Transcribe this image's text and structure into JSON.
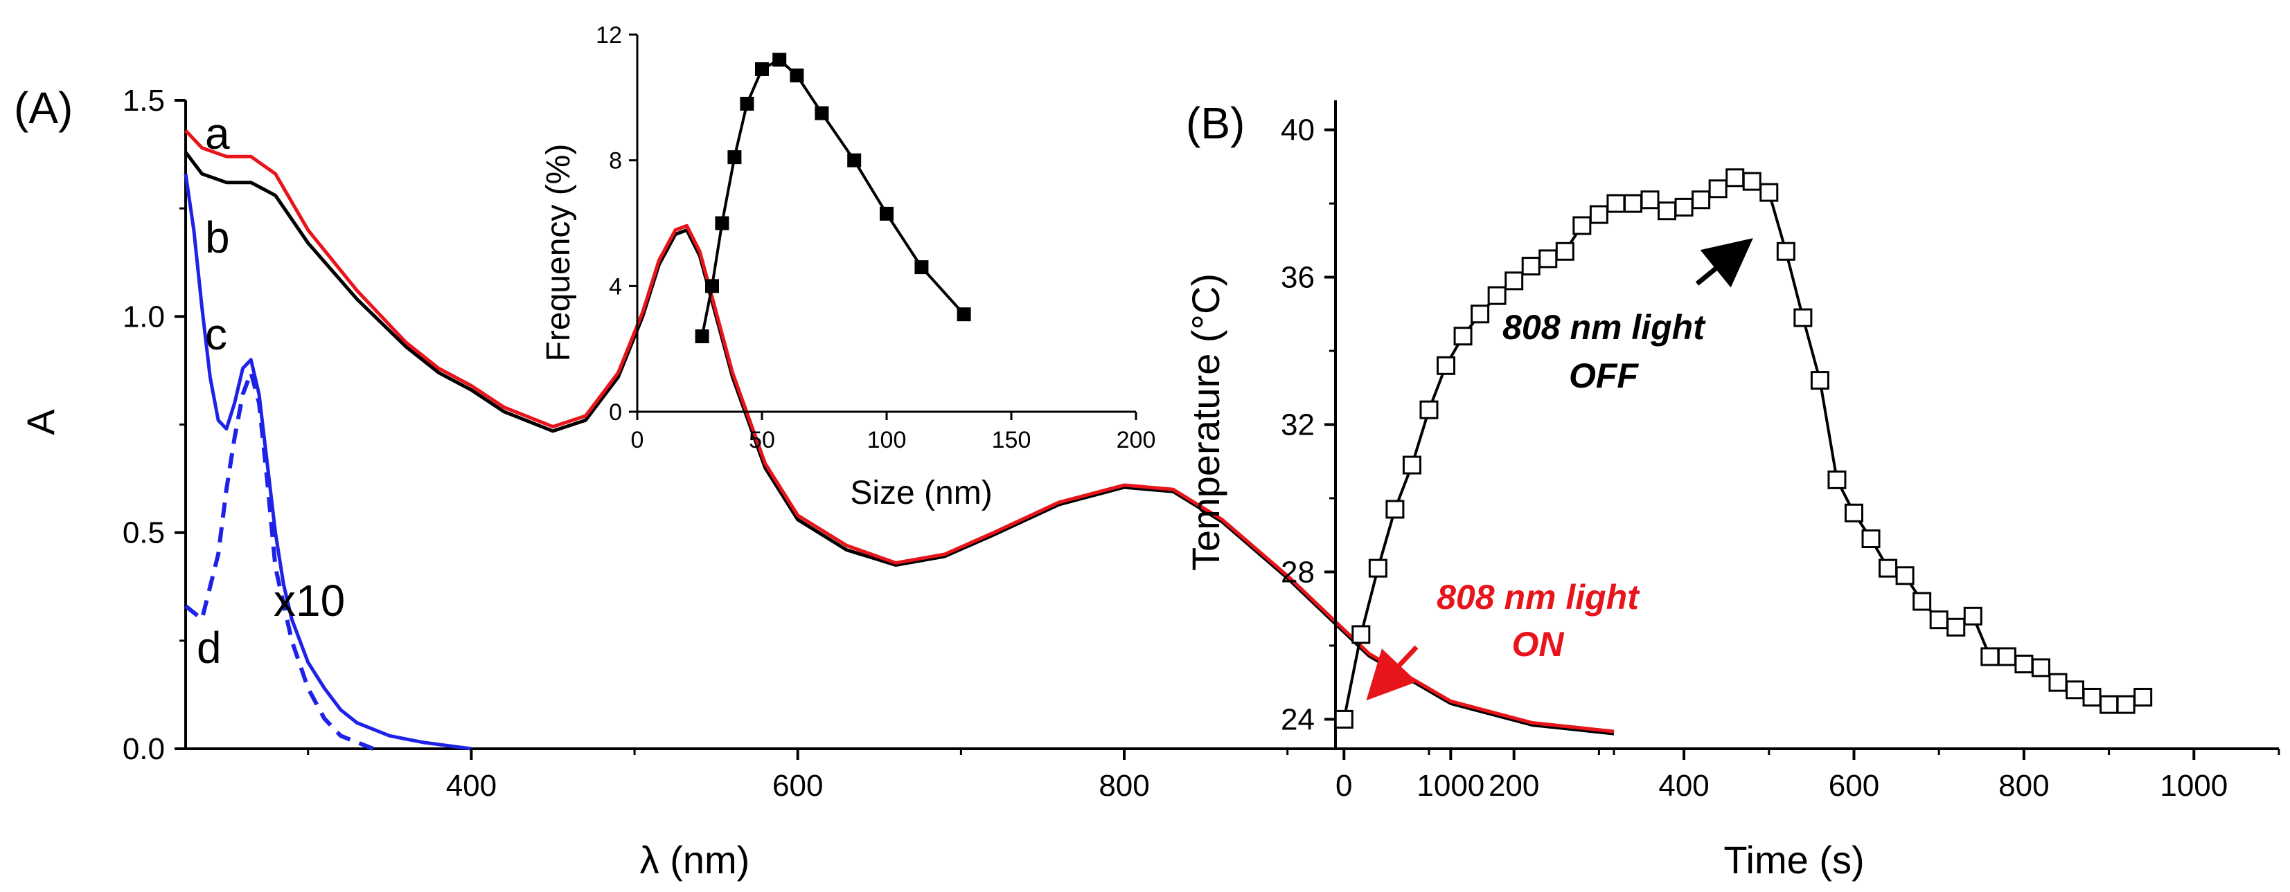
{
  "colors": {
    "axis": "#000000",
    "curve_a": "#e8141b",
    "curve_b": "#000000",
    "curve_cd": "#1e22e6",
    "annot_off": "#000000",
    "annot_on": "#e8141b"
  },
  "chart_data": [
    {
      "id": "A",
      "panel_label": "(A)",
      "type": "line",
      "xlabel": "λ (nm)",
      "ylabel": "A",
      "xlim": [
        225,
        1100
      ],
      "ylim": [
        0,
        1.5
      ],
      "xticks": [
        400,
        600,
        800,
        1000
      ],
      "yticks": [
        0.0,
        0.5,
        1.0,
        1.5
      ],
      "ytick_labels": [
        "0.0",
        "0.5",
        "1.0",
        "1.5"
      ],
      "x10_label": "x10",
      "series": [
        {
          "name": "a",
          "label": "a",
          "color": "#e8141b",
          "style": "solid",
          "x": [
            225,
            235,
            250,
            265,
            280,
            300,
            330,
            360,
            380,
            400,
            420,
            450,
            470,
            490,
            505,
            515,
            525,
            532,
            540,
            550,
            560,
            580,
            600,
            630,
            660,
            690,
            720,
            760,
            800,
            830,
            860,
            900,
            950,
            1000,
            1050,
            1100
          ],
          "y": [
            1.43,
            1.39,
            1.37,
            1.37,
            1.33,
            1.2,
            1.06,
            0.94,
            0.88,
            0.84,
            0.79,
            0.745,
            0.77,
            0.87,
            1.01,
            1.13,
            1.2,
            1.21,
            1.15,
            1.01,
            0.87,
            0.66,
            0.54,
            0.47,
            0.43,
            0.45,
            0.5,
            0.57,
            0.61,
            0.6,
            0.53,
            0.4,
            0.22,
            0.11,
            0.06,
            0.04
          ]
        },
        {
          "name": "b",
          "label": "b",
          "color": "#000000",
          "style": "solid",
          "x": [
            225,
            235,
            250,
            265,
            280,
            300,
            330,
            360,
            380,
            400,
            420,
            450,
            470,
            490,
            505,
            515,
            525,
            532,
            540,
            550,
            560,
            580,
            600,
            630,
            660,
            690,
            720,
            760,
            800,
            830,
            860,
            900,
            950,
            1000,
            1050,
            1100
          ],
          "y": [
            1.38,
            1.33,
            1.31,
            1.31,
            1.28,
            1.17,
            1.04,
            0.93,
            0.87,
            0.83,
            0.78,
            0.735,
            0.76,
            0.86,
            1.0,
            1.12,
            1.19,
            1.2,
            1.14,
            1.0,
            0.86,
            0.65,
            0.53,
            0.46,
            0.425,
            0.445,
            0.495,
            0.565,
            0.605,
            0.595,
            0.525,
            0.395,
            0.215,
            0.105,
            0.055,
            0.035
          ]
        },
        {
          "name": "c",
          "label": "c",
          "color": "#1e22e6",
          "style": "solid",
          "x": [
            225,
            230,
            235,
            240,
            245,
            250,
            255,
            260,
            265,
            270,
            275,
            280,
            285,
            290,
            300,
            310,
            320,
            330,
            350,
            370,
            400
          ],
          "y": [
            1.33,
            1.2,
            1.02,
            0.86,
            0.76,
            0.74,
            0.8,
            0.88,
            0.9,
            0.82,
            0.66,
            0.5,
            0.38,
            0.3,
            0.2,
            0.14,
            0.09,
            0.06,
            0.03,
            0.015,
            0.0
          ]
        },
        {
          "name": "d",
          "label": "d",
          "color": "#1e22e6",
          "style": "dashed",
          "x": [
            225,
            235,
            245,
            250,
            255,
            260,
            265,
            270,
            275,
            280,
            290,
            300,
            310,
            320,
            340
          ],
          "y": [
            0.33,
            0.3,
            0.45,
            0.6,
            0.72,
            0.82,
            0.87,
            0.8,
            0.62,
            0.42,
            0.25,
            0.14,
            0.07,
            0.03,
            0.0
          ]
        }
      ]
    },
    {
      "id": "A-inset",
      "type": "line",
      "xlabel": "Size (nm)",
      "ylabel": "Frequency (%)",
      "xlim": [
        0,
        200
      ],
      "ylim": [
        0,
        12
      ],
      "xticks": [
        0,
        50,
        100,
        150,
        200
      ],
      "yticks": [
        0,
        4,
        8,
        12
      ],
      "series": [
        {
          "name": "Frequency",
          "marker": "filled-square",
          "x": [
            26,
            30,
            34,
            39,
            44,
            50,
            57,
            64,
            74,
            87,
            100,
            114,
            131
          ],
          "y": [
            2.4,
            4.0,
            6.0,
            8.1,
            9.8,
            10.9,
            11.2,
            10.7,
            9.5,
            8.0,
            6.3,
            4.6,
            3.1
          ]
        }
      ]
    },
    {
      "id": "B",
      "panel_label": "(B)",
      "type": "line",
      "xlabel": "Time (s)",
      "ylabel": "Temperature (°C)",
      "xlim": [
        -10,
        1100
      ],
      "ylim": [
        23.2,
        40.8
      ],
      "xticks": [
        0,
        200,
        400,
        600,
        800,
        1000
      ],
      "yticks": [
        24,
        28,
        32,
        36,
        40
      ],
      "series": [
        {
          "name": "Temperature",
          "marker": "open-square",
          "x": [
            0,
            20,
            40,
            60,
            80,
            100,
            120,
            140,
            160,
            180,
            200,
            220,
            240,
            260,
            280,
            300,
            320,
            340,
            360,
            380,
            400,
            420,
            440,
            460,
            480,
            500,
            520,
            540,
            560,
            580,
            600,
            620,
            640,
            660,
            680,
            700,
            720,
            740,
            760,
            780,
            800,
            820,
            840,
            860,
            880,
            900,
            920,
            940
          ],
          "y": [
            24.0,
            26.3,
            28.1,
            29.7,
            30.9,
            32.4,
            33.6,
            34.4,
            35.0,
            35.5,
            35.9,
            36.3,
            36.5,
            36.7,
            37.4,
            37.7,
            38.0,
            38.0,
            38.1,
            37.8,
            37.9,
            38.1,
            38.4,
            38.7,
            38.6,
            38.3,
            36.7,
            34.9,
            33.2,
            30.5,
            29.6,
            28.9,
            28.1,
            27.9,
            27.2,
            26.7,
            26.5,
            26.8,
            25.7,
            25.7,
            25.5,
            25.4,
            25.0,
            24.8,
            24.6,
            24.4,
            24.4,
            24.6
          ]
        }
      ],
      "annotations": [
        {
          "line1": "808 nm light",
          "line2": "OFF",
          "color": "#000000"
        },
        {
          "line1": "808 nm light",
          "line2": "ON",
          "color": "#e8141b"
        }
      ]
    }
  ]
}
